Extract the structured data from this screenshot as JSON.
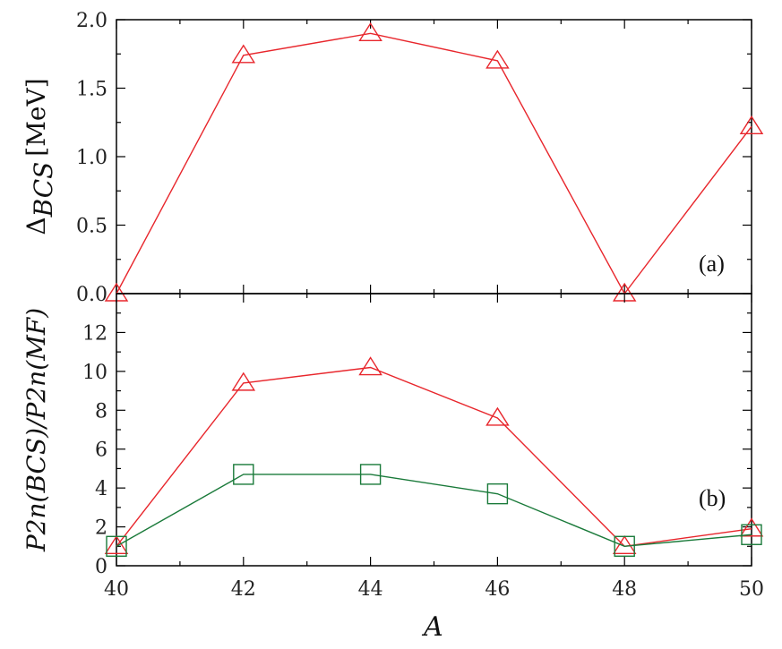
{
  "chart_data": [
    {
      "type": "line",
      "panel_label": "(a)",
      "ylabel": {
        "main": "Δ",
        "sub": "BCS",
        "unit": "[MeV]"
      },
      "xlim": [
        40,
        50
      ],
      "ylim": [
        0,
        2.0
      ],
      "x": [
        40,
        42,
        44,
        46,
        48,
        50
      ],
      "yticks": [
        "0.0",
        "0.5",
        "1.0",
        "1.5",
        "2.0"
      ],
      "series": [
        {
          "marker": "triangle",
          "color": "#e8262c",
          "values": [
            0.0,
            1.74,
            1.9,
            1.7,
            0.0,
            1.22
          ]
        }
      ]
    },
    {
      "type": "line",
      "panel_label": "(b)",
      "ylabel": {
        "text": "P2n(BCS)/P2n(MF)"
      },
      "xlim": [
        40,
        50
      ],
      "ylim": [
        0,
        14
      ],
      "x": [
        40,
        42,
        44,
        46,
        48,
        50
      ],
      "xticks": [
        "40",
        "42",
        "44",
        "46",
        "48",
        "50"
      ],
      "xlabel": "A",
      "yticks": [
        "0",
        "2",
        "4",
        "6",
        "8",
        "10",
        "12"
      ],
      "series": [
        {
          "marker": "triangle",
          "color": "#e8262c",
          "values": [
            1.0,
            9.4,
            10.2,
            7.6,
            1.0,
            1.9
          ]
        },
        {
          "marker": "square",
          "color": "#1a7a3a",
          "values": [
            1.0,
            4.7,
            4.7,
            3.7,
            1.0,
            1.6
          ]
        }
      ]
    }
  ]
}
